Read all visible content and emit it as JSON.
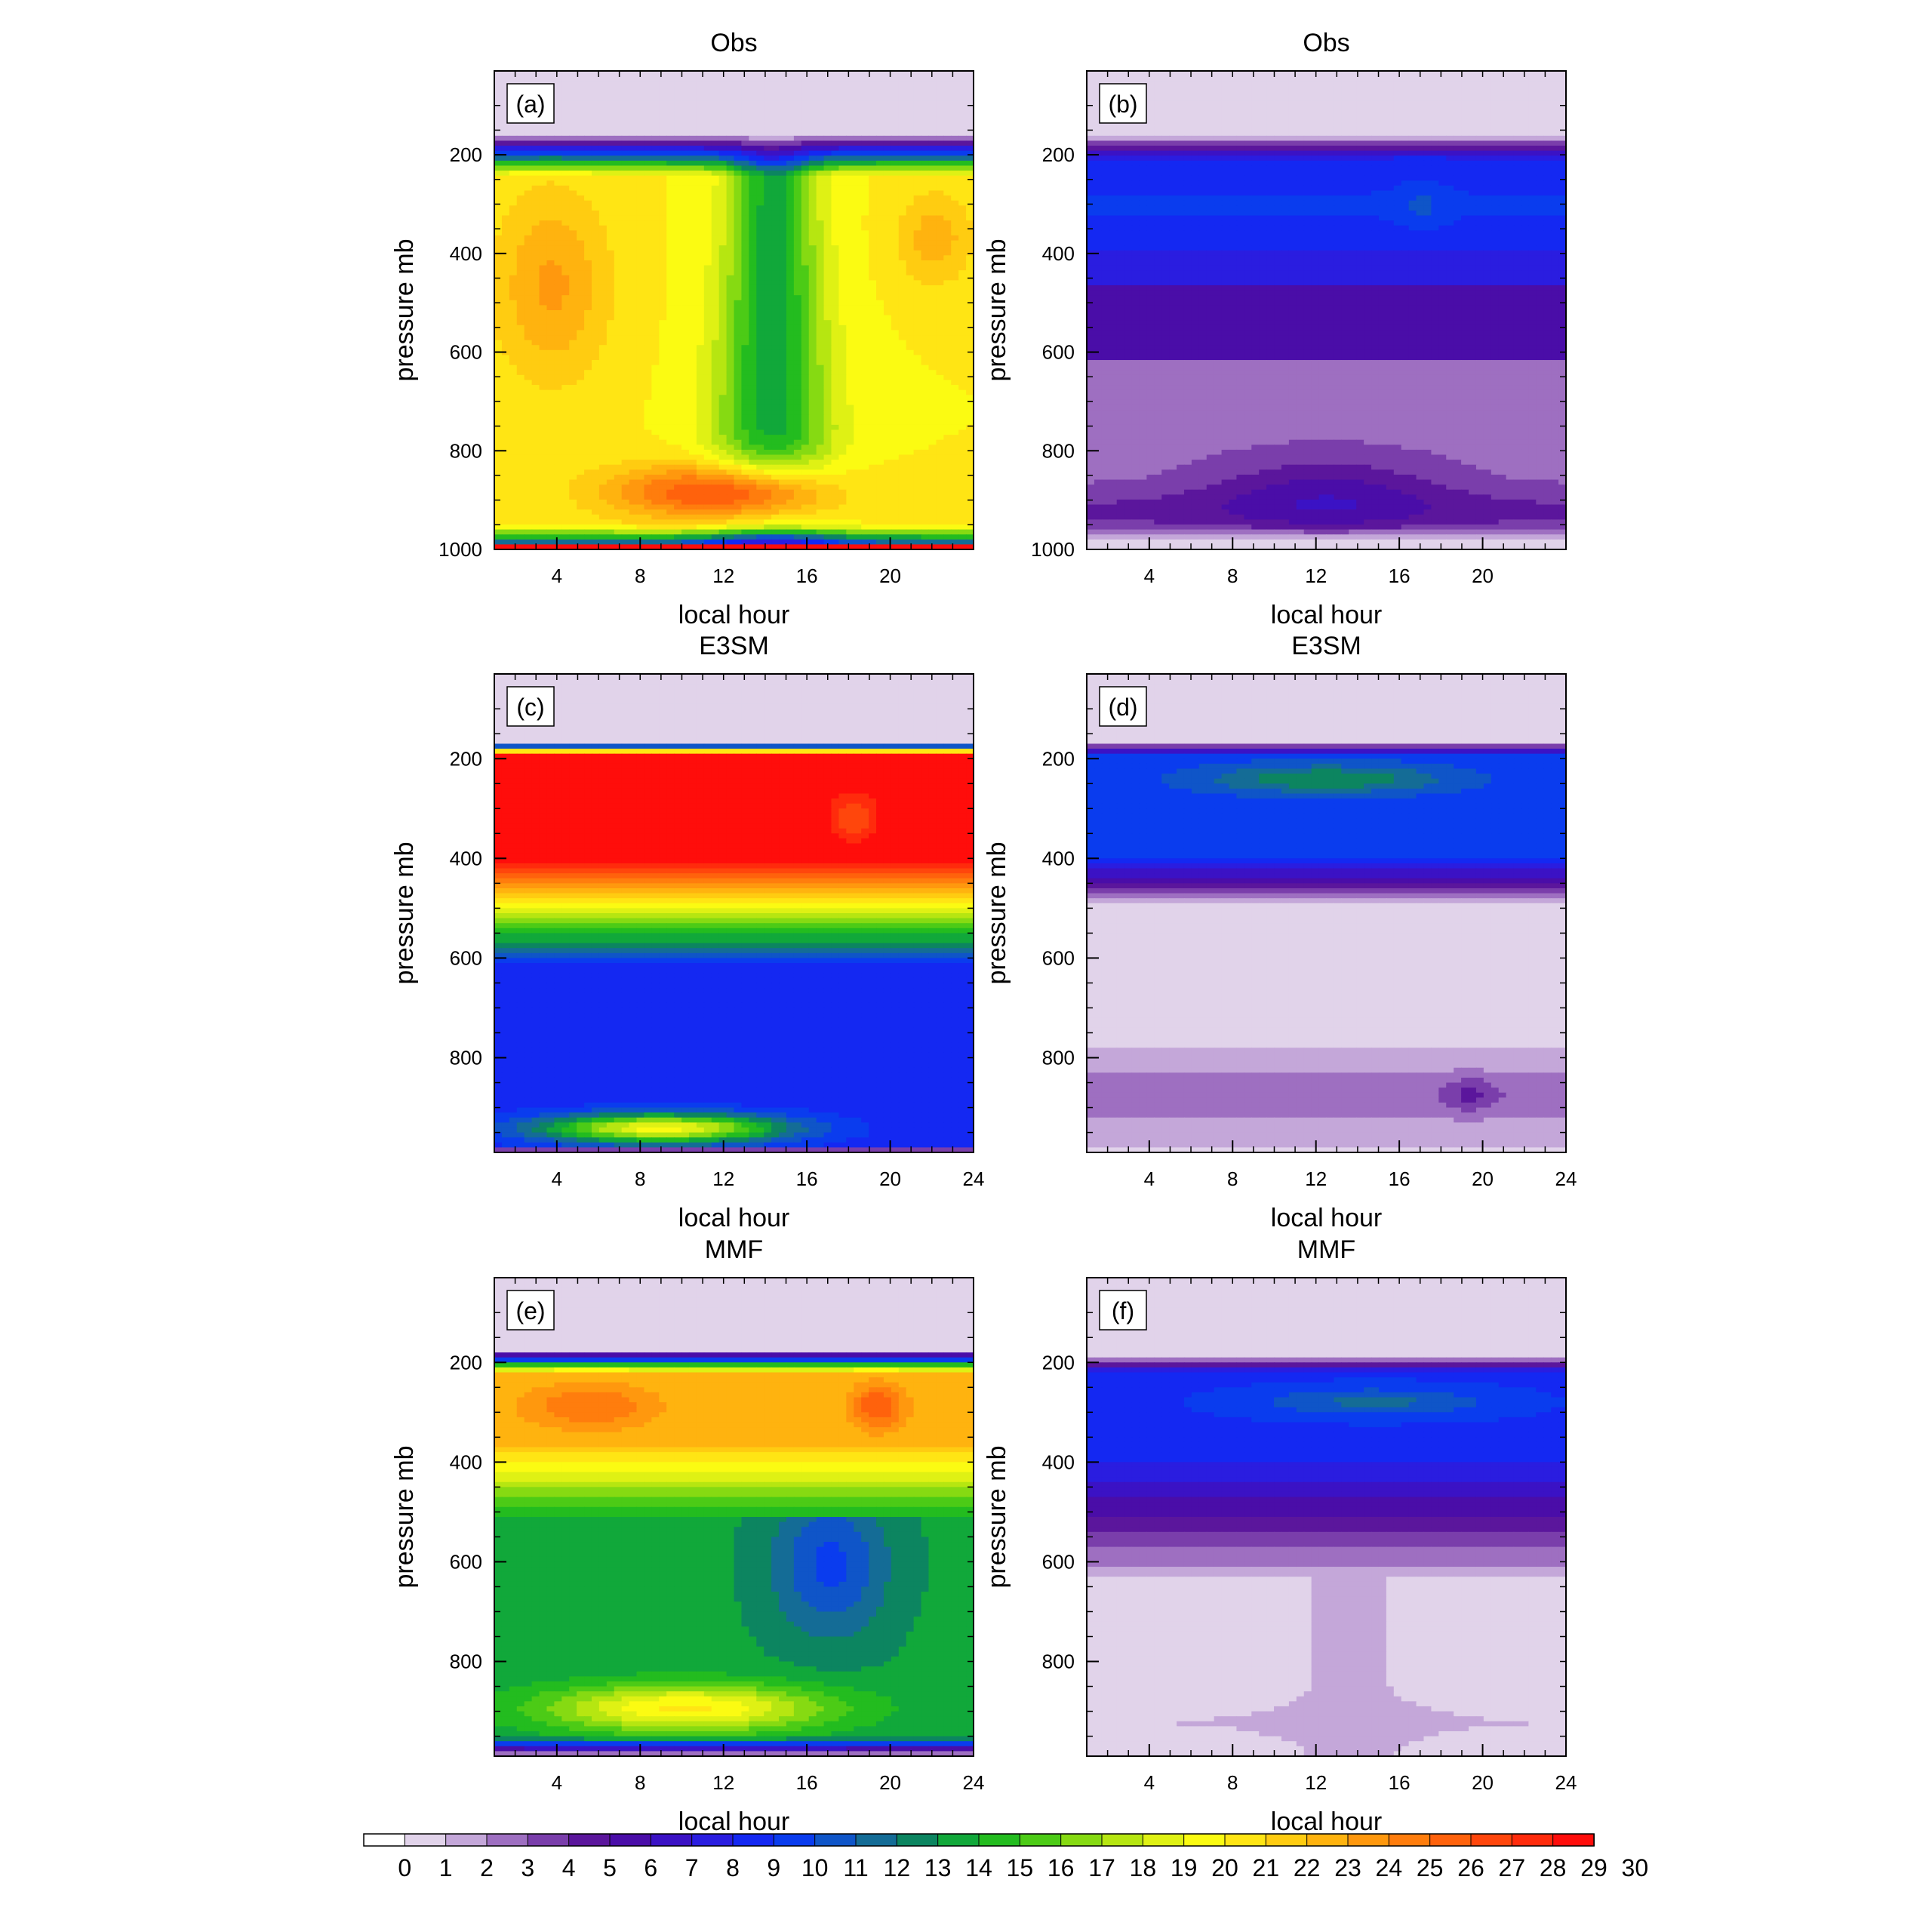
{
  "chart_data": {
    "type": "heatmap",
    "layout": "3 rows x 2 columns",
    "shared_colorbar": {
      "labels": [
        "0",
        "1",
        "2",
        "3",
        "4",
        "5",
        "6",
        "7",
        "8",
        "9",
        "10",
        "11",
        "12",
        "13",
        "14",
        "15",
        "16",
        "17",
        "18",
        "19",
        "20",
        "21",
        "22",
        "23",
        "24",
        "25",
        "26",
        "27",
        "28",
        "29",
        "30"
      ],
      "colors": [
        "#ffffff",
        "#e1d3ea",
        "#c4a7d9",
        "#9e6fc1",
        "#7a3eab",
        "#5b169c",
        "#4a0da8",
        "#3b12c5",
        "#2a1de0",
        "#1428f2",
        "#0a3cee",
        "#0f55c8",
        "#146c96",
        "#0c8560",
        "#11a83a",
        "#23bc1f",
        "#4ccb16",
        "#86da12",
        "#b6e611",
        "#dff114",
        "#fbfb12",
        "#ffe514",
        "#ffcc11",
        "#ffb30f",
        "#ff980e",
        "#ff7d0d",
        "#ff620c",
        "#ff460c",
        "#ff2b0c",
        "#ff0d0b"
      ],
      "orientation": "horizontal",
      "placement": "bottom"
    },
    "panels": [
      {
        "id": "a",
        "label": "(a)",
        "title": "Obs",
        "xlabel": "local hour",
        "ylabel": "pressure mb",
        "xticks": [
          "4",
          "8",
          "12",
          "16",
          "20"
        ],
        "xlim": [
          1,
          24
        ],
        "yticks": [
          "200",
          "400",
          "600",
          "800",
          "1000"
        ],
        "ylim": [
          1000,
          30
        ]
      },
      {
        "id": "b",
        "label": "(b)",
        "title": "Obs",
        "xlabel": "local hour",
        "ylabel": "pressure mb",
        "xticks": [
          "4",
          "8",
          "12",
          "16",
          "20"
        ],
        "xlim": [
          1,
          24
        ],
        "yticks": [
          "200",
          "400",
          "600",
          "800",
          "1000"
        ],
        "ylim": [
          1000,
          30
        ]
      },
      {
        "id": "c",
        "label": "(c)",
        "title": "E3SM",
        "xlabel": "local hour",
        "ylabel": "pressure mb",
        "xticks": [
          "4",
          "8",
          "12",
          "16",
          "20",
          "24"
        ],
        "xlim": [
          1,
          24
        ],
        "yticks": [
          "200",
          "400",
          "600",
          "800"
        ],
        "ylim": [
          990,
          30
        ]
      },
      {
        "id": "d",
        "label": "(d)",
        "title": "E3SM",
        "xlabel": "local hour",
        "ylabel": "pressure mb",
        "xticks": [
          "4",
          "8",
          "12",
          "16",
          "20",
          "24"
        ],
        "xlim": [
          1,
          24
        ],
        "yticks": [
          "200",
          "400",
          "600",
          "800"
        ],
        "ylim": [
          990,
          30
        ]
      },
      {
        "id": "e",
        "label": "(e)",
        "title": "MMF",
        "xlabel": "local hour",
        "ylabel": "pressure mb",
        "xticks": [
          "4",
          "8",
          "12",
          "16",
          "20",
          "24"
        ],
        "xlim": [
          1,
          24
        ],
        "yticks": [
          "200",
          "400",
          "600",
          "800"
        ],
        "ylim": [
          990,
          30
        ]
      },
      {
        "id": "f",
        "label": "(f)",
        "title": "MMF",
        "xlabel": "local hour",
        "ylabel": "pressure mb",
        "xticks": [
          "4",
          "8",
          "12",
          "16",
          "20",
          "24"
        ],
        "xlim": [
          1,
          24
        ],
        "yticks": [
          "200",
          "400",
          "600",
          "800"
        ],
        "ylim": [
          990,
          30
        ]
      }
    ]
  }
}
